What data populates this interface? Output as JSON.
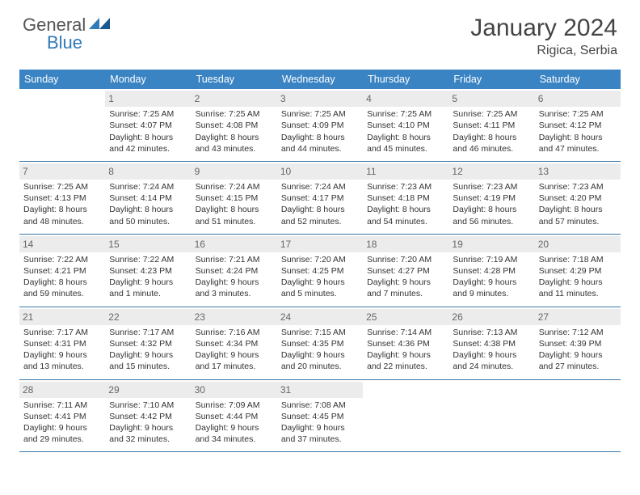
{
  "brand": {
    "part1": "General",
    "part2": "Blue",
    "shape_color": "#2f7ab8"
  },
  "title": "January 2024",
  "location": "Rigica, Serbia",
  "header_bg": "#3a84c4",
  "border_color": "#3a78a8",
  "daynum_bg": "#ececec",
  "weekdays": [
    "Sunday",
    "Monday",
    "Tuesday",
    "Wednesday",
    "Thursday",
    "Friday",
    "Saturday"
  ],
  "weeks": [
    [
      {
        "n": "",
        "l": []
      },
      {
        "n": "1",
        "l": [
          "Sunrise: 7:25 AM",
          "Sunset: 4:07 PM",
          "Daylight: 8 hours",
          "and 42 minutes."
        ]
      },
      {
        "n": "2",
        "l": [
          "Sunrise: 7:25 AM",
          "Sunset: 4:08 PM",
          "Daylight: 8 hours",
          "and 43 minutes."
        ]
      },
      {
        "n": "3",
        "l": [
          "Sunrise: 7:25 AM",
          "Sunset: 4:09 PM",
          "Daylight: 8 hours",
          "and 44 minutes."
        ]
      },
      {
        "n": "4",
        "l": [
          "Sunrise: 7:25 AM",
          "Sunset: 4:10 PM",
          "Daylight: 8 hours",
          "and 45 minutes."
        ]
      },
      {
        "n": "5",
        "l": [
          "Sunrise: 7:25 AM",
          "Sunset: 4:11 PM",
          "Daylight: 8 hours",
          "and 46 minutes."
        ]
      },
      {
        "n": "6",
        "l": [
          "Sunrise: 7:25 AM",
          "Sunset: 4:12 PM",
          "Daylight: 8 hours",
          "and 47 minutes."
        ]
      }
    ],
    [
      {
        "n": "7",
        "l": [
          "Sunrise: 7:25 AM",
          "Sunset: 4:13 PM",
          "Daylight: 8 hours",
          "and 48 minutes."
        ]
      },
      {
        "n": "8",
        "l": [
          "Sunrise: 7:24 AM",
          "Sunset: 4:14 PM",
          "Daylight: 8 hours",
          "and 50 minutes."
        ]
      },
      {
        "n": "9",
        "l": [
          "Sunrise: 7:24 AM",
          "Sunset: 4:15 PM",
          "Daylight: 8 hours",
          "and 51 minutes."
        ]
      },
      {
        "n": "10",
        "l": [
          "Sunrise: 7:24 AM",
          "Sunset: 4:17 PM",
          "Daylight: 8 hours",
          "and 52 minutes."
        ]
      },
      {
        "n": "11",
        "l": [
          "Sunrise: 7:23 AM",
          "Sunset: 4:18 PM",
          "Daylight: 8 hours",
          "and 54 minutes."
        ]
      },
      {
        "n": "12",
        "l": [
          "Sunrise: 7:23 AM",
          "Sunset: 4:19 PM",
          "Daylight: 8 hours",
          "and 56 minutes."
        ]
      },
      {
        "n": "13",
        "l": [
          "Sunrise: 7:23 AM",
          "Sunset: 4:20 PM",
          "Daylight: 8 hours",
          "and 57 minutes."
        ]
      }
    ],
    [
      {
        "n": "14",
        "l": [
          "Sunrise: 7:22 AM",
          "Sunset: 4:21 PM",
          "Daylight: 8 hours",
          "and 59 minutes."
        ]
      },
      {
        "n": "15",
        "l": [
          "Sunrise: 7:22 AM",
          "Sunset: 4:23 PM",
          "Daylight: 9 hours",
          "and 1 minute."
        ]
      },
      {
        "n": "16",
        "l": [
          "Sunrise: 7:21 AM",
          "Sunset: 4:24 PM",
          "Daylight: 9 hours",
          "and 3 minutes."
        ]
      },
      {
        "n": "17",
        "l": [
          "Sunrise: 7:20 AM",
          "Sunset: 4:25 PM",
          "Daylight: 9 hours",
          "and 5 minutes."
        ]
      },
      {
        "n": "18",
        "l": [
          "Sunrise: 7:20 AM",
          "Sunset: 4:27 PM",
          "Daylight: 9 hours",
          "and 7 minutes."
        ]
      },
      {
        "n": "19",
        "l": [
          "Sunrise: 7:19 AM",
          "Sunset: 4:28 PM",
          "Daylight: 9 hours",
          "and 9 minutes."
        ]
      },
      {
        "n": "20",
        "l": [
          "Sunrise: 7:18 AM",
          "Sunset: 4:29 PM",
          "Daylight: 9 hours",
          "and 11 minutes."
        ]
      }
    ],
    [
      {
        "n": "21",
        "l": [
          "Sunrise: 7:17 AM",
          "Sunset: 4:31 PM",
          "Daylight: 9 hours",
          "and 13 minutes."
        ]
      },
      {
        "n": "22",
        "l": [
          "Sunrise: 7:17 AM",
          "Sunset: 4:32 PM",
          "Daylight: 9 hours",
          "and 15 minutes."
        ]
      },
      {
        "n": "23",
        "l": [
          "Sunrise: 7:16 AM",
          "Sunset: 4:34 PM",
          "Daylight: 9 hours",
          "and 17 minutes."
        ]
      },
      {
        "n": "24",
        "l": [
          "Sunrise: 7:15 AM",
          "Sunset: 4:35 PM",
          "Daylight: 9 hours",
          "and 20 minutes."
        ]
      },
      {
        "n": "25",
        "l": [
          "Sunrise: 7:14 AM",
          "Sunset: 4:36 PM",
          "Daylight: 9 hours",
          "and 22 minutes."
        ]
      },
      {
        "n": "26",
        "l": [
          "Sunrise: 7:13 AM",
          "Sunset: 4:38 PM",
          "Daylight: 9 hours",
          "and 24 minutes."
        ]
      },
      {
        "n": "27",
        "l": [
          "Sunrise: 7:12 AM",
          "Sunset: 4:39 PM",
          "Daylight: 9 hours",
          "and 27 minutes."
        ]
      }
    ],
    [
      {
        "n": "28",
        "l": [
          "Sunrise: 7:11 AM",
          "Sunset: 4:41 PM",
          "Daylight: 9 hours",
          "and 29 minutes."
        ]
      },
      {
        "n": "29",
        "l": [
          "Sunrise: 7:10 AM",
          "Sunset: 4:42 PM",
          "Daylight: 9 hours",
          "and 32 minutes."
        ]
      },
      {
        "n": "30",
        "l": [
          "Sunrise: 7:09 AM",
          "Sunset: 4:44 PM",
          "Daylight: 9 hours",
          "and 34 minutes."
        ]
      },
      {
        "n": "31",
        "l": [
          "Sunrise: 7:08 AM",
          "Sunset: 4:45 PM",
          "Daylight: 9 hours",
          "and 37 minutes."
        ]
      },
      {
        "n": "",
        "l": []
      },
      {
        "n": "",
        "l": []
      },
      {
        "n": "",
        "l": []
      }
    ]
  ]
}
